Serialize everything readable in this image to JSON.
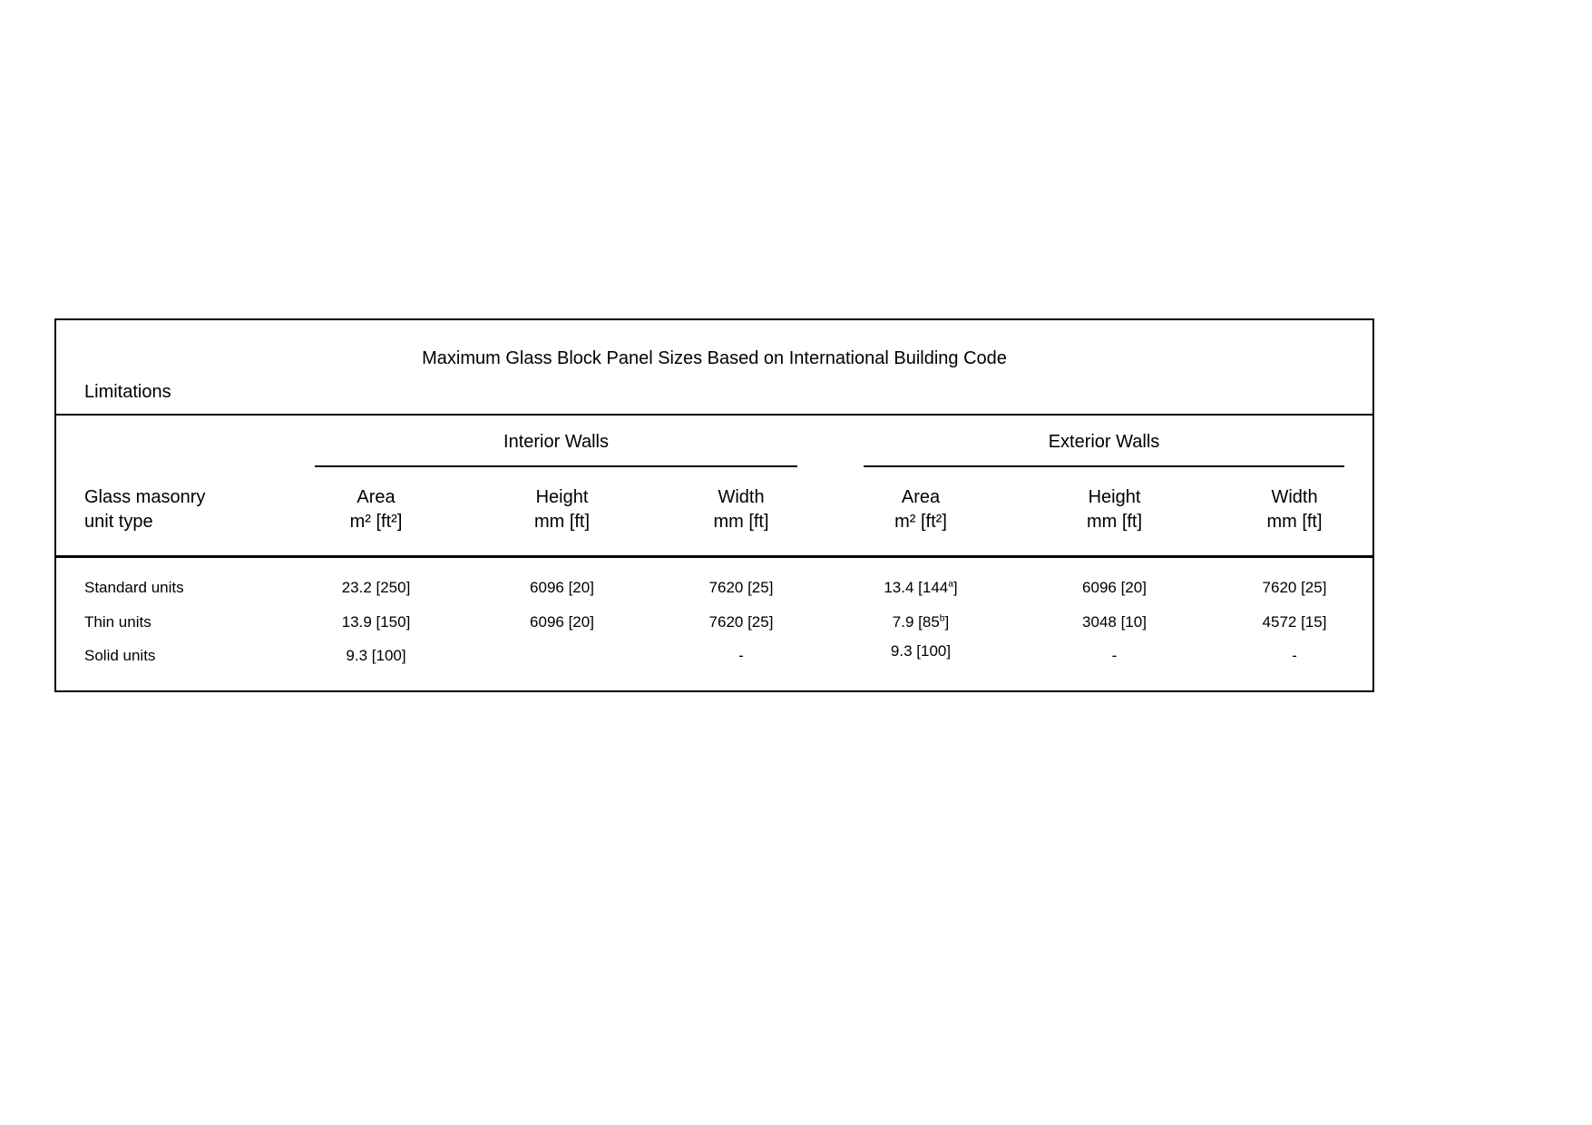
{
  "page": {
    "background_color": "#ffffff",
    "text_color": "#000000"
  },
  "table": {
    "caption": {
      "line1": "Maximum Glass Block Panel Sizes Based on International Building Code",
      "line2": "Limitations"
    },
    "group_headers": {
      "interior": "Interior Walls",
      "exterior": "Exterior Walls"
    },
    "stub_header": {
      "line1": "Glass masonry",
      "line2": "unit type"
    },
    "columns": [
      {
        "label": "Area",
        "units": "m² [ft²]"
      },
      {
        "label": "Height",
        "units": "mm [ft]"
      },
      {
        "label": "Width",
        "units": "mm [ft]"
      },
      {
        "label": "Area",
        "units": "m² [ft²]"
      },
      {
        "label": "Height",
        "units": "mm [ft]"
      },
      {
        "label": "Width",
        "units": "mm [ft]"
      }
    ],
    "rows": [
      {
        "label": "Standard units",
        "cells": [
          {
            "pre": "23.2 [250]",
            "sup": "",
            "post": ""
          },
          {
            "pre": "6096 [20]",
            "sup": "",
            "post": ""
          },
          {
            "pre": "7620 [25]",
            "sup": "",
            "post": ""
          },
          {
            "pre": "13.4 [144",
            "sup": "a",
            "post": "]"
          },
          {
            "pre": "6096 [20]",
            "sup": "",
            "post": ""
          },
          {
            "pre": "7620 [25]",
            "sup": "",
            "post": ""
          }
        ]
      },
      {
        "label": "Thin units",
        "cells": [
          {
            "pre": "13.9 [150]",
            "sup": "",
            "post": ""
          },
          {
            "pre": "6096 [20]",
            "sup": "",
            "post": ""
          },
          {
            "pre": "7620 [25]",
            "sup": "",
            "post": ""
          },
          {
            "pre": "7.9 [85",
            "sup": "b",
            "post": "]"
          },
          {
            "pre": "3048 [10]",
            "sup": "",
            "post": ""
          },
          {
            "pre": "4572 [15]",
            "sup": "",
            "post": ""
          }
        ]
      },
      {
        "label": "Solid units",
        "cells": [
          {
            "pre": "9.3 [100]",
            "sup": "",
            "post": ""
          },
          {
            "pre": "",
            "sup": "",
            "post": ""
          },
          {
            "pre": "-",
            "sup": "",
            "post": ""
          },
          {
            "pre": "9.3 [100]",
            "sup": "",
            "post": ""
          },
          {
            "pre": "-",
            "sup": "",
            "post": ""
          },
          {
            "pre": "-",
            "sup": "",
            "post": ""
          }
        ]
      }
    ]
  },
  "chart_data": {
    "type": "table",
    "title": "Maximum Glass Block Panel Sizes Based on International Building Code Limitations",
    "column_groups": [
      "Interior Walls",
      "Exterior Walls"
    ],
    "columns": [
      "Glass masonry unit type",
      "Interior Area m² [ft²]",
      "Interior Height mm [ft]",
      "Interior Width mm [ft]",
      "Exterior Area m² [ft²]",
      "Exterior Height mm [ft]",
      "Exterior Width mm [ft]"
    ],
    "rows": [
      [
        "Standard units",
        "23.2 [250]",
        "6096 [20]",
        "7620 [25]",
        "13.4 [144a]",
        "6096 [20]",
        "7620 [25]"
      ],
      [
        "Thin units",
        "13.9 [150]",
        "6096 [20]",
        "7620 [25]",
        "7.9 [85b]",
        "3048 [10]",
        "4572 [15]"
      ],
      [
        "Solid units",
        "9.3 [100]",
        "",
        "-",
        "9.3 [100]",
        "-",
        "-"
      ]
    ],
    "footnote_markers": [
      "a",
      "b"
    ]
  }
}
